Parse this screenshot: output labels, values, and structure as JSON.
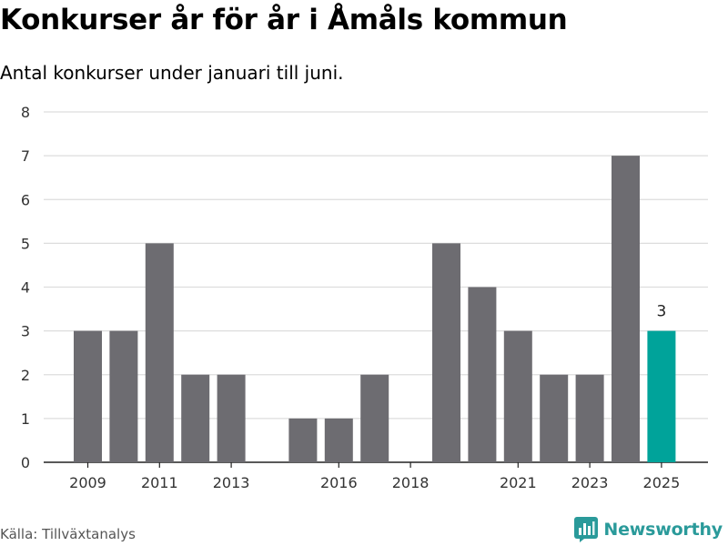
{
  "title": "Konkurser år för år i Åmåls kommun",
  "subtitle": "Antal konkurser under januari till juni.",
  "source": "Källa: Tillväxtanalys",
  "brand": {
    "name": "Newsworthy",
    "icon": "bar-chart-logo-icon",
    "color": "#2a9a9a"
  },
  "colors": {
    "bar": "#6d6c71",
    "highlight": "#00a39a",
    "grid": "#dddddd",
    "axis": "#222222"
  },
  "chart_data": {
    "type": "bar",
    "title": "Konkurser år för år i Åmåls kommun",
    "subtitle": "Antal konkurser under januari till juni.",
    "xlabel": "",
    "ylabel": "",
    "ylim": [
      0,
      8
    ],
    "yticks": [
      0,
      1,
      2,
      3,
      4,
      5,
      6,
      7,
      8
    ],
    "grid": true,
    "x": [
      2009,
      2010,
      2011,
      2012,
      2013,
      2014,
      2015,
      2016,
      2017,
      2018,
      2019,
      2020,
      2021,
      2022,
      2023,
      2024,
      2025
    ],
    "values": [
      3,
      3,
      5,
      2,
      2,
      0,
      1,
      1,
      2,
      0,
      5,
      4,
      3,
      2,
      2,
      7,
      3
    ],
    "xtick_labels": [
      "2009",
      "2011",
      "2013",
      "2016",
      "2018",
      "2021",
      "2023",
      "2025"
    ],
    "highlight": {
      "x": 2025,
      "label": "3"
    }
  }
}
